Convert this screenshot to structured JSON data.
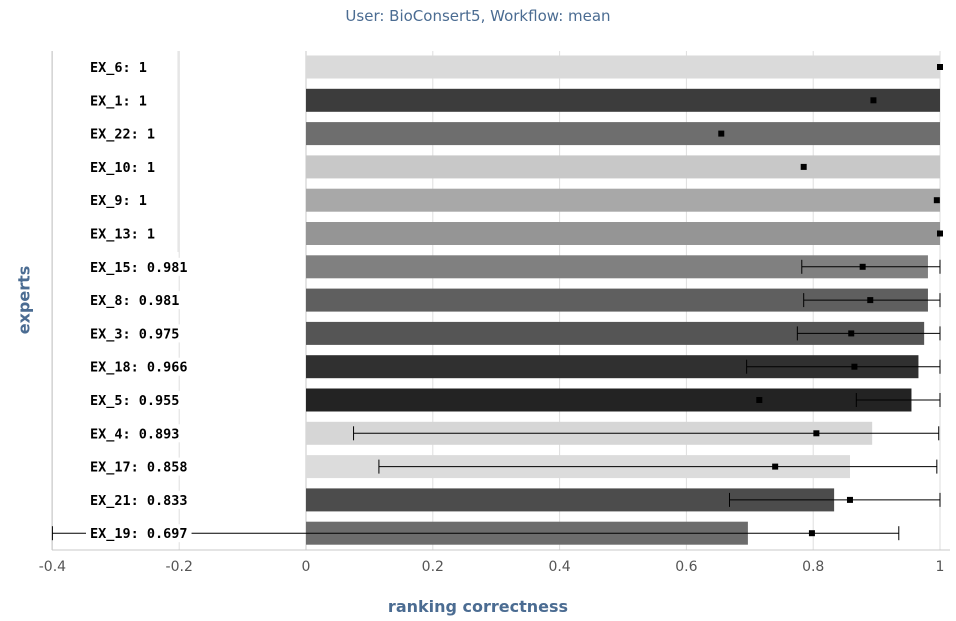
{
  "chart_data": {
    "type": "bar",
    "orientation": "horizontal",
    "title": "User: BioConsert5, Workflow: mean",
    "xlabel": "ranking correctness",
    "ylabel": "experts",
    "xlim": [
      -0.4,
      1.0
    ],
    "xticks": [
      "-0.4",
      "-0.2",
      "0",
      "0.2",
      "0.4",
      "0.6",
      "0.8",
      "1"
    ],
    "grid": true,
    "categories": [
      "EX_6: 1",
      "EX_1: 1",
      "EX_22: 1",
      "EX_10: 1",
      "EX_9: 1",
      "EX_13: 1",
      "EX_15: 0.981",
      "EX_8: 0.981",
      "EX_3: 0.975",
      "EX_18: 0.966",
      "EX_5: 0.955",
      "EX_4: 0.893",
      "EX_17: 0.858",
      "EX_21: 0.833",
      "EX_19: 0.697"
    ],
    "values": [
      1,
      1,
      1,
      1,
      1,
      1,
      0.981,
      0.981,
      0.975,
      0.966,
      0.955,
      0.893,
      0.858,
      0.833,
      0.697
    ],
    "colors": [
      "#dadada",
      "#3c3c3c",
      "#6e6e6e",
      "#c8c8c8",
      "#a8a8a8",
      "#959595",
      "#808080",
      "#5f5f5f",
      "#555555",
      "#303030",
      "#232323",
      "#d6d6d6",
      "#dcdcdc",
      "#4c4c4c",
      "#6c6c6c"
    ],
    "points": [
      1.0,
      0.895,
      0.655,
      0.785,
      0.995,
      1.0,
      0.878,
      0.89,
      0.86,
      0.865,
      0.715,
      0.805,
      0.74,
      0.858,
      0.798
    ],
    "error_low": [
      null,
      null,
      null,
      null,
      null,
      null,
      0.782,
      0.785,
      0.775,
      0.695,
      0.868,
      0.075,
      0.115,
      0.668,
      -0.4
    ],
    "error_high": [
      null,
      null,
      null,
      null,
      null,
      null,
      1.0,
      1.0,
      1.0,
      1.0,
      1.0,
      0.998,
      0.995,
      1.0,
      0.935
    ]
  }
}
